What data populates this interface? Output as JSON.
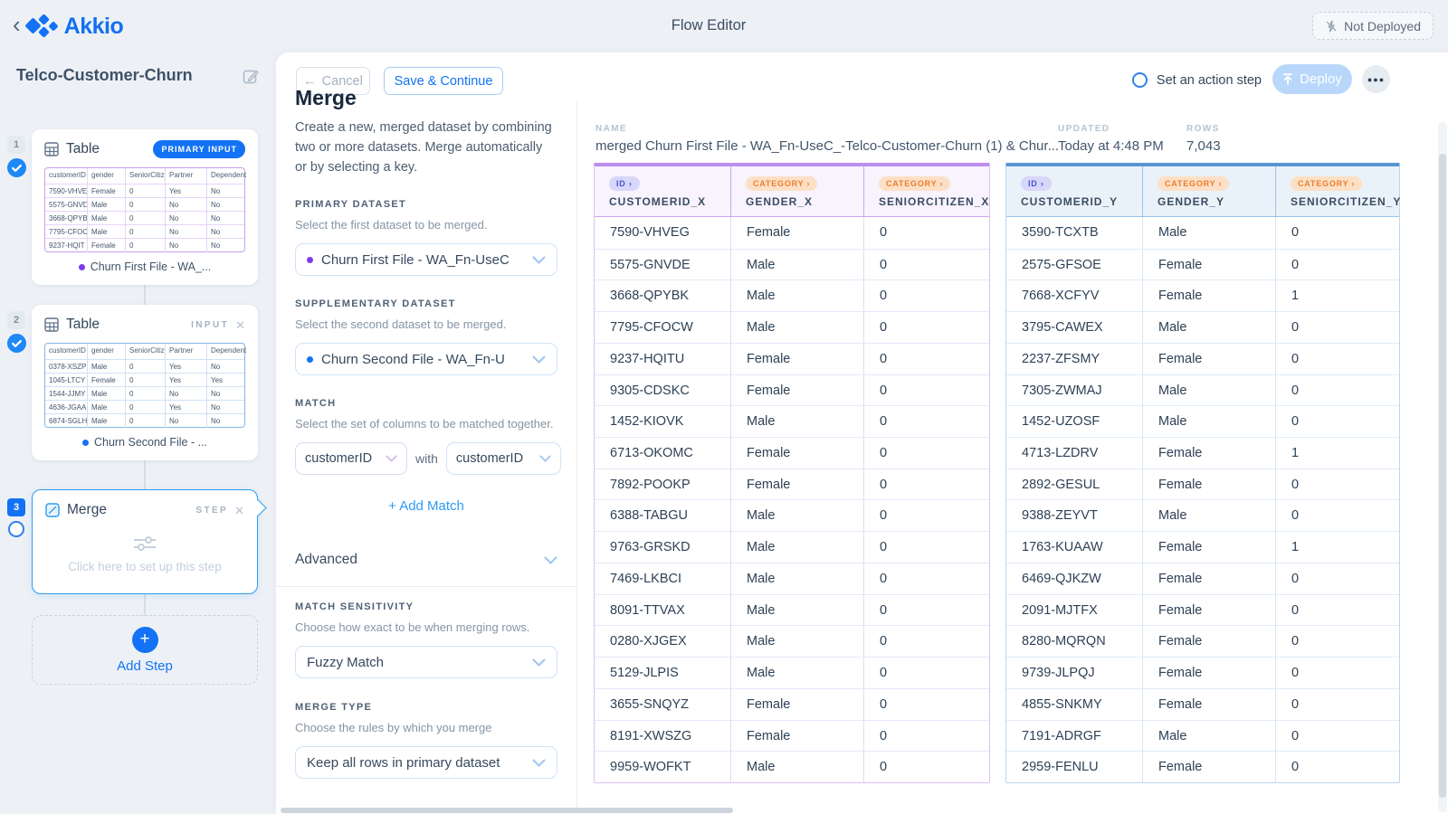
{
  "header": {
    "back_icon": "‹",
    "brand": "Akkio",
    "title": "Flow Editor",
    "not_deployed": "Not Deployed"
  },
  "sidebar": {
    "flow_name": "Telco-Customer-Churn",
    "add_step": "Add Step",
    "steps": [
      {
        "number": "1",
        "title": "Table",
        "badge": "PRIMARY INPUT",
        "dataset": "Churn First File - WA_...",
        "mini_table": {
          "headers": [
            "customerID",
            "gender",
            "SeniorCitiz",
            "Partner",
            "Dependent"
          ],
          "rows": [
            [
              "7590-VHVE",
              "Female",
              "0",
              "Yes",
              "No"
            ],
            [
              "5575-GNVD",
              "Male",
              "0",
              "No",
              "No"
            ],
            [
              "3668-QPYB",
              "Male",
              "0",
              "No",
              "No"
            ],
            [
              "7795-CFOC",
              "Male",
              "0",
              "No",
              "No"
            ],
            [
              "9237-HQIT",
              "Female",
              "0",
              "No",
              "No"
            ]
          ]
        }
      },
      {
        "number": "2",
        "title": "Table",
        "tag": "INPUT",
        "dataset": "Churn Second File - ...",
        "mini_table": {
          "headers": [
            "customerID",
            "gender",
            "SeniorCitiz",
            "Partner",
            "Dependent"
          ],
          "rows": [
            [
              "0378-XSZP",
              "Male",
              "0",
              "Yes",
              "No"
            ],
            [
              "1045-LTCY",
              "Female",
              "0",
              "Yes",
              "Yes"
            ],
            [
              "1544-JJMY",
              "Male",
              "0",
              "No",
              "No"
            ],
            [
              "4636-JGAA",
              "Male",
              "0",
              "Yes",
              "No"
            ],
            [
              "6874-SGLH",
              "Male",
              "0",
              "No",
              "No"
            ]
          ]
        }
      },
      {
        "number": "3",
        "title": "Merge",
        "tag": "STEP",
        "placeholder": "Click here to set up this step"
      }
    ]
  },
  "toolbar": {
    "cancel_arrow": "←",
    "cancel": "Cancel",
    "save": "Save & Continue",
    "action_step": "Set an action step",
    "deploy": "Deploy",
    "more": "●●●"
  },
  "icons": {
    "close": "✕",
    "plus": "+"
  },
  "settings": {
    "heading": "Merge",
    "description": "Create a new, merged dataset by combining two or more datasets. Merge automatically or by selecting a key.",
    "primary_label": "PRIMARY DATASET",
    "primary_help": "Select the first dataset to be merged.",
    "primary_value": "Churn First File - WA_Fn-UseC",
    "supplementary_label": "SUPPLEMENTARY DATASET",
    "supplementary_help": "Select the second dataset to be merged.",
    "supplementary_value": "Churn Second File - WA_Fn-U",
    "match_label": "MATCH",
    "match_help": "Select the set of columns to be matched together.",
    "match_left": "customerID",
    "match_with": "with",
    "match_right": "customerID",
    "add_match": "+ Add Match",
    "advanced": "Advanced",
    "sensitivity_label": "MATCH SENSITIVITY",
    "sensitivity_help": "Choose how exact to be when merging rows.",
    "sensitivity_value": "Fuzzy Match",
    "merge_type_label": "MERGE TYPE",
    "merge_type_help": "Choose the rules by which you merge",
    "merge_type_value": "Keep all rows in primary dataset"
  },
  "preview": {
    "name_label": "NAME",
    "name_value": "merged Churn First File - WA_Fn-UseC_-Telco-Customer-Churn (1) & Chur...",
    "updated_label": "UPDATED",
    "updated_value": "Today at 4:48 PM",
    "rows_label": "ROWS",
    "rows_value": "7,043",
    "tables": [
      {
        "theme": "purple",
        "columns": [
          {
            "badge": "ID ›",
            "type": "id",
            "label": "CUSTOMERID_X"
          },
          {
            "badge": "CATEGORY ›",
            "type": "category",
            "label": "GENDER_X"
          },
          {
            "badge": "CATEGORY ›",
            "type": "category",
            "label": "SENIORCITIZEN_X"
          }
        ],
        "rows": [
          [
            "7590-VHVEG",
            "Female",
            "0"
          ],
          [
            "5575-GNVDE",
            "Male",
            "0"
          ],
          [
            "3668-QPYBK",
            "Male",
            "0"
          ],
          [
            "7795-CFOCW",
            "Male",
            "0"
          ],
          [
            "9237-HQITU",
            "Female",
            "0"
          ],
          [
            "9305-CDSKC",
            "Female",
            "0"
          ],
          [
            "1452-KIOVK",
            "Male",
            "0"
          ],
          [
            "6713-OKOMC",
            "Female",
            "0"
          ],
          [
            "7892-POOKP",
            "Female",
            "0"
          ],
          [
            "6388-TABGU",
            "Male",
            "0"
          ],
          [
            "9763-GRSKD",
            "Male",
            "0"
          ],
          [
            "7469-LKBCI",
            "Male",
            "0"
          ],
          [
            "8091-TTVAX",
            "Male",
            "0"
          ],
          [
            "0280-XJGEX",
            "Male",
            "0"
          ],
          [
            "5129-JLPIS",
            "Male",
            "0"
          ],
          [
            "3655-SNQYZ",
            "Female",
            "0"
          ],
          [
            "8191-XWSZG",
            "Female",
            "0"
          ],
          [
            "9959-WOFKT",
            "Male",
            "0"
          ]
        ]
      },
      {
        "theme": "blue",
        "columns": [
          {
            "badge": "ID ›",
            "type": "id",
            "label": "CUSTOMERID_Y"
          },
          {
            "badge": "CATEGORY ›",
            "type": "category",
            "label": "GENDER_Y"
          },
          {
            "badge": "CATEGORY ›",
            "type": "category",
            "label": "SENIORCITIZEN_Y"
          }
        ],
        "rows": [
          [
            "3590-TCXTB",
            "Male",
            "0"
          ],
          [
            "2575-GFSOE",
            "Female",
            "0"
          ],
          [
            "7668-XCFYV",
            "Female",
            "1"
          ],
          [
            "3795-CAWEX",
            "Male",
            "0"
          ],
          [
            "2237-ZFSMY",
            "Female",
            "0"
          ],
          [
            "7305-ZWMAJ",
            "Male",
            "0"
          ],
          [
            "1452-UZOSF",
            "Male",
            "0"
          ],
          [
            "4713-LZDRV",
            "Female",
            "1"
          ],
          [
            "2892-GESUL",
            "Female",
            "0"
          ],
          [
            "9388-ZEYVT",
            "Male",
            "0"
          ],
          [
            "1763-KUAAW",
            "Female",
            "1"
          ],
          [
            "6469-QJKZW",
            "Female",
            "0"
          ],
          [
            "2091-MJTFX",
            "Female",
            "0"
          ],
          [
            "8280-MQRQN",
            "Female",
            "0"
          ],
          [
            "9739-JLPQJ",
            "Female",
            "0"
          ],
          [
            "4855-SNKMY",
            "Female",
            "0"
          ],
          [
            "7191-ADRGF",
            "Male",
            "0"
          ],
          [
            "2959-FENLU",
            "Female",
            "0"
          ]
        ]
      }
    ]
  },
  "colors": {
    "brand_blue": "#1372f5",
    "purple_accent": "#bd8ef0",
    "blue_accent": "#5795d2",
    "id_badge_text": "#4353d0",
    "category_badge_text": "#ed7d2d"
  }
}
